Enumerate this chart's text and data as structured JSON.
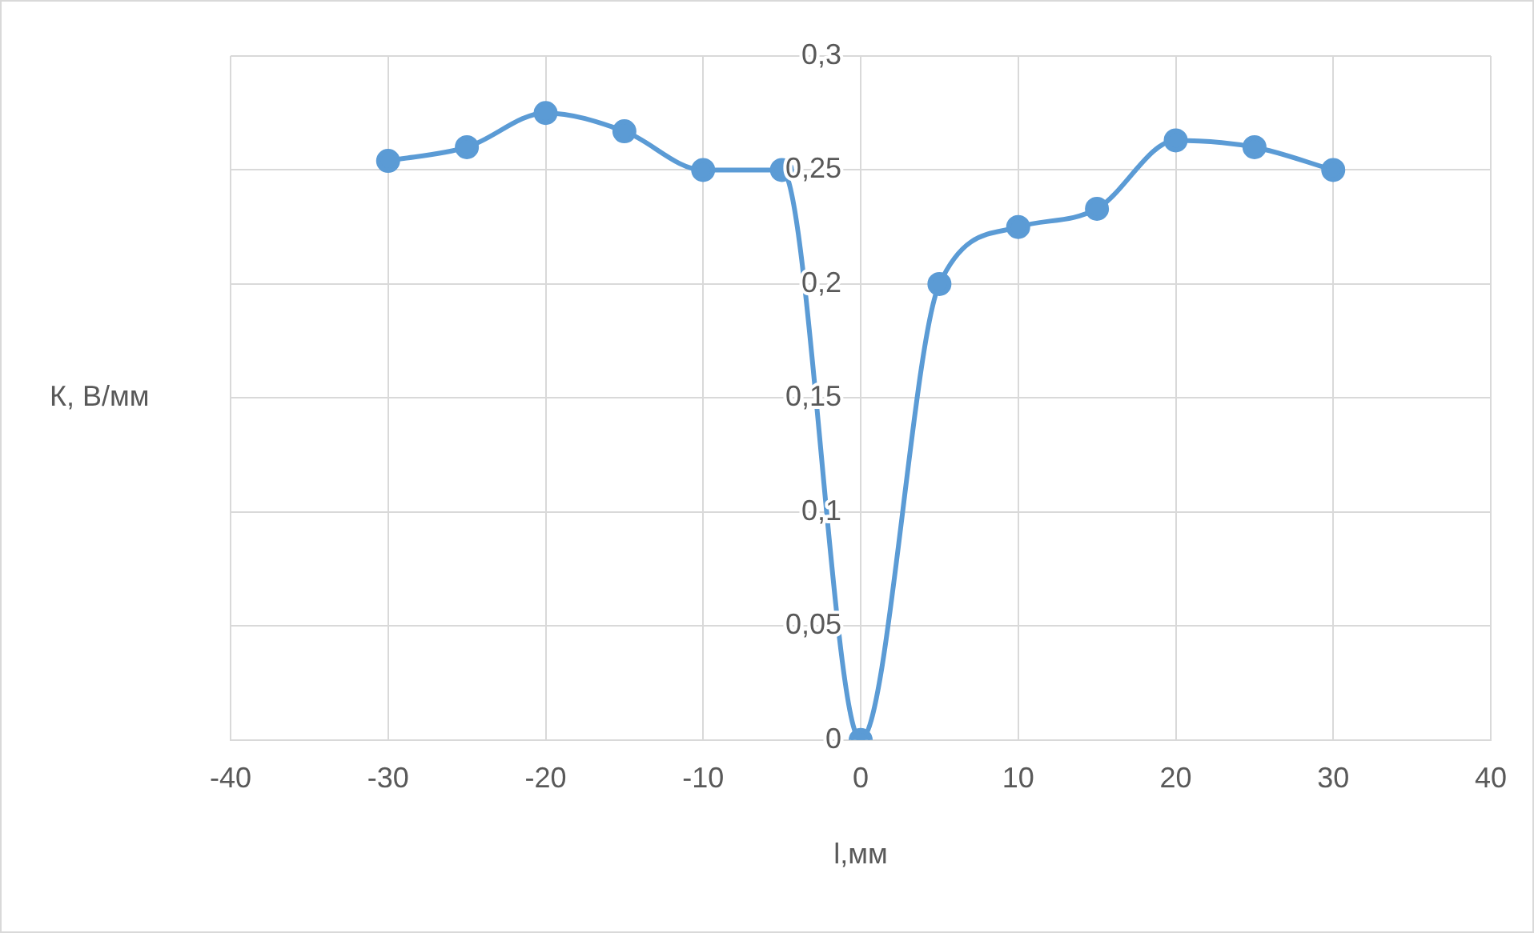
{
  "chart_data": {
    "type": "line",
    "xlabel": "l,мм",
    "ylabel": "К, В/мм",
    "x": [
      -30,
      -25,
      -20,
      -15,
      -10,
      -5,
      0,
      5,
      10,
      15,
      20,
      25,
      30
    ],
    "series": [
      {
        "color": "#5b9bd5",
        "values": [
          0.254,
          0.26,
          0.275,
          0.267,
          0.25,
          0.25,
          0,
          0.2,
          0.225,
          0.233,
          0.263,
          0.26,
          0.25
        ]
      }
    ],
    "xlim": [
      -40,
      40
    ],
    "xticks": [
      -40,
      -30,
      -20,
      -10,
      0,
      10,
      20,
      30,
      40
    ],
    "ylim": [
      0,
      0.3
    ],
    "yticks": [
      0,
      {
        "value": 0.05,
        "label": "0,05"
      },
      {
        "value": 0.1,
        "label": "0,1"
      },
      {
        "value": 0.15,
        "label": "0,15"
      },
      {
        "value": 0.2,
        "label": "0,2"
      },
      {
        "value": 0.25,
        "label": "0,25"
      },
      {
        "value": 0.3,
        "label": "0,3"
      }
    ],
    "grid": true,
    "marker": "circle",
    "line_style": "solid",
    "legend": false
  }
}
